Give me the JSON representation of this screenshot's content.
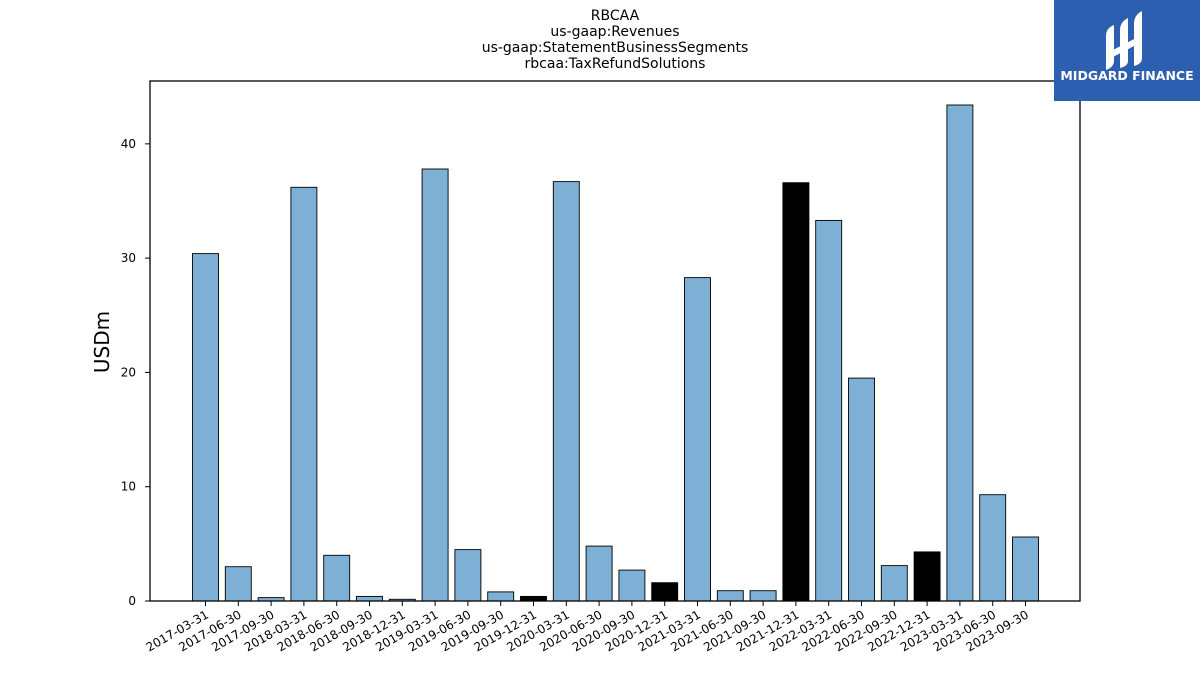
{
  "chart_data": {
    "type": "bar",
    "title_lines": [
      "RBCAA",
      "us-gaap:Revenues",
      "us-gaap:StatementBusinessSegments",
      "rbcaa:TaxRefundSolutions"
    ],
    "xlabel": "",
    "ylabel": "USDm",
    "ylim": [
      0,
      45.5
    ],
    "yticks": [
      0,
      10,
      20,
      30,
      40
    ],
    "categories": [
      "2017-03-31",
      "2017-06-30",
      "2017-09-30",
      "2018-03-31",
      "2018-06-30",
      "2018-09-30",
      "2018-12-31",
      "2019-03-31",
      "2019-06-30",
      "2019-09-30",
      "2019-12-31",
      "2020-03-31",
      "2020-06-30",
      "2020-09-30",
      "2020-12-31",
      "2021-03-31",
      "2021-06-30",
      "2021-09-30",
      "2021-12-31",
      "2022-03-31",
      "2022-06-30",
      "2022-09-30",
      "2022-12-31",
      "2023-03-31",
      "2023-06-30",
      "2023-09-30"
    ],
    "values": [
      30.4,
      3.0,
      0.3,
      36.2,
      4.0,
      0.4,
      0.15,
      37.8,
      4.5,
      0.8,
      0.4,
      36.7,
      4.8,
      2.7,
      1.6,
      28.3,
      0.9,
      0.9,
      36.6,
      33.3,
      19.5,
      3.1,
      4.3,
      43.4,
      9.3,
      5.6
    ],
    "highlighted": [
      "2019-12-31",
      "2020-12-31",
      "2021-12-31",
      "2022-12-31"
    ],
    "colors": {
      "bar": "#7eb0d5",
      "highlight": "#000000",
      "edge": "#000000"
    },
    "grid": false,
    "legend": "none"
  },
  "logo": {
    "text": "MIDGARD FINANCE",
    "background": "#2d5fb0"
  }
}
